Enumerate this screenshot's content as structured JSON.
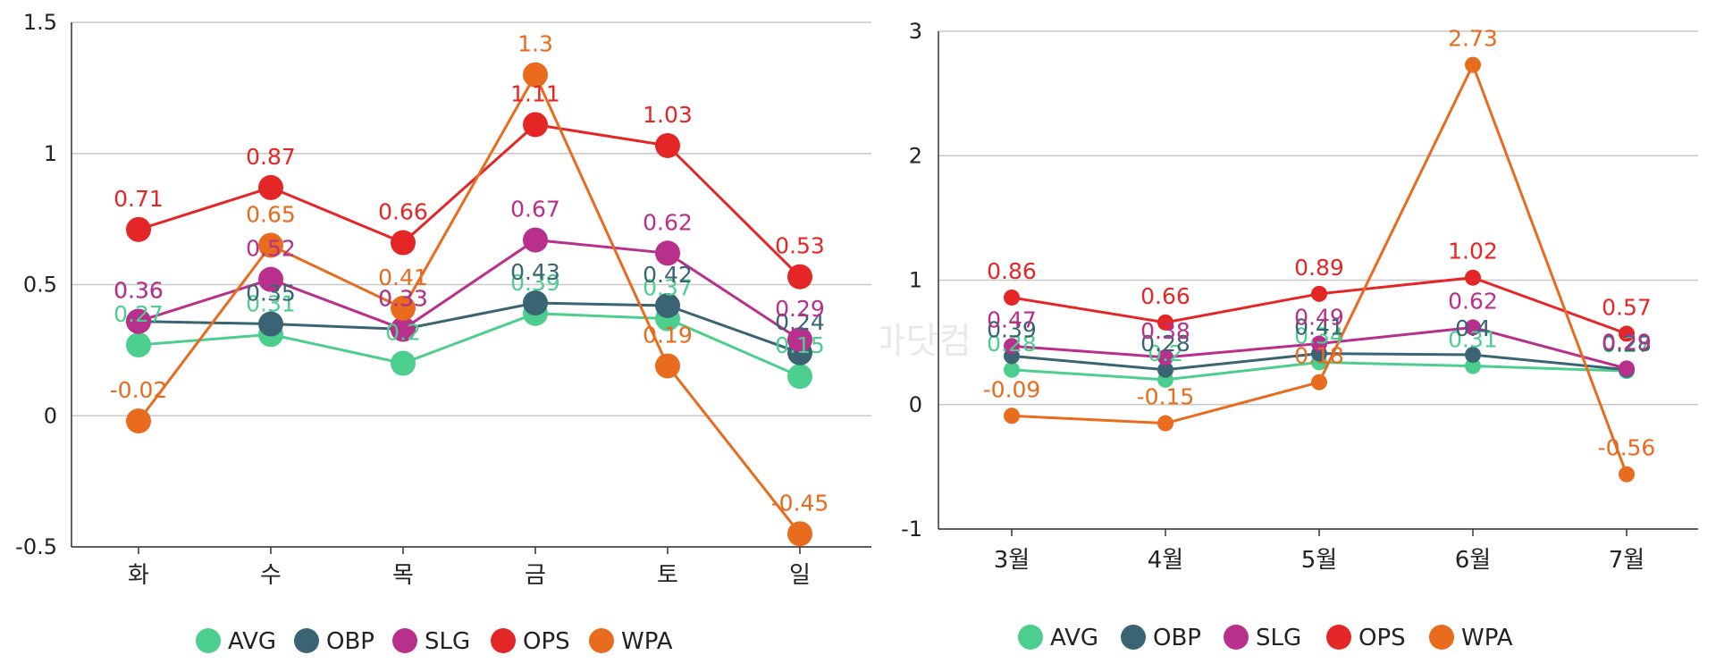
{
  "watermark": "동르마닷컴",
  "colors": {
    "AVG": "#4cce8e",
    "OBP": "#3a6474",
    "SLG": "#b82f8c",
    "OPS": "#e52626",
    "WPA": "#e86b1e"
  },
  "chart_data": [
    {
      "type": "line",
      "title": "",
      "categories": [
        "화",
        "수",
        "목",
        "금",
        "토",
        "일"
      ],
      "ylim": [
        -0.5,
        1.5
      ],
      "yticks": [
        "1.5",
        "1",
        "0.5",
        "0",
        "-0.5"
      ],
      "grid": true,
      "legend": "bottom",
      "series": [
        {
          "name": "AVG",
          "values": [
            0.27,
            0.31,
            0.2,
            0.39,
            0.37,
            0.15
          ],
          "labels": [
            "0.27",
            "0.31",
            "0.2",
            "0.39",
            "0.37",
            "0.15"
          ]
        },
        {
          "name": "OBP",
          "values": [
            0.36,
            0.35,
            0.33,
            0.43,
            0.42,
            0.24
          ],
          "labels": [
            "0.36",
            "0.35",
            "0.33",
            "0.43",
            "0.42",
            "0.24"
          ]
        },
        {
          "name": "SLG",
          "values": [
            0.36,
            0.52,
            0.33,
            0.67,
            0.62,
            0.29
          ],
          "labels": [
            "0.36",
            "0.52",
            "0.33",
            "0.67",
            "0.62",
            "0.29"
          ]
        },
        {
          "name": "OPS",
          "values": [
            0.71,
            0.87,
            0.66,
            1.11,
            1.03,
            0.53
          ],
          "labels": [
            "0.71",
            "0.87",
            "0.66",
            "1.11",
            "1.03",
            "0.53"
          ]
        },
        {
          "name": "WPA",
          "values": [
            -0.02,
            0.65,
            0.41,
            1.3,
            0.19,
            -0.45
          ],
          "labels": [
            "-0.02",
            "0.65",
            "0.41",
            "1.3",
            "0.19",
            "-0.45"
          ]
        }
      ]
    },
    {
      "type": "line",
      "title": "",
      "categories": [
        "3월",
        "4월",
        "5월",
        "6월",
        "7월"
      ],
      "ylim": [
        -1,
        3
      ],
      "yticks": [
        "3",
        "2",
        "1",
        "0",
        "-1"
      ],
      "grid": true,
      "legend": "bottom",
      "series": [
        {
          "name": "AVG",
          "values": [
            0.28,
            0.2,
            0.34,
            0.31,
            0.27
          ],
          "labels": [
            "0.28",
            "0.2",
            "0.34",
            "0.31",
            "0.27"
          ]
        },
        {
          "name": "OBP",
          "values": [
            0.39,
            0.28,
            0.41,
            0.4,
            0.28
          ],
          "labels": [
            "0.39",
            "0.28",
            "0.41",
            "0.4",
            "0.28"
          ]
        },
        {
          "name": "SLG",
          "values": [
            0.47,
            0.38,
            0.49,
            0.62,
            0.29
          ],
          "labels": [
            "0.47",
            "0.38",
            "0.49",
            "0.62",
            "0.29"
          ]
        },
        {
          "name": "OPS",
          "values": [
            0.86,
            0.66,
            0.89,
            1.02,
            0.57
          ],
          "labels": [
            "0.86",
            "0.66",
            "0.89",
            "1.02",
            "0.57"
          ]
        },
        {
          "name": "WPA",
          "values": [
            -0.09,
            -0.15,
            0.18,
            2.73,
            -0.56
          ],
          "labels": [
            "-0.09",
            "-0.15",
            "0.18",
            "2.73",
            "-0.56"
          ]
        }
      ]
    }
  ]
}
